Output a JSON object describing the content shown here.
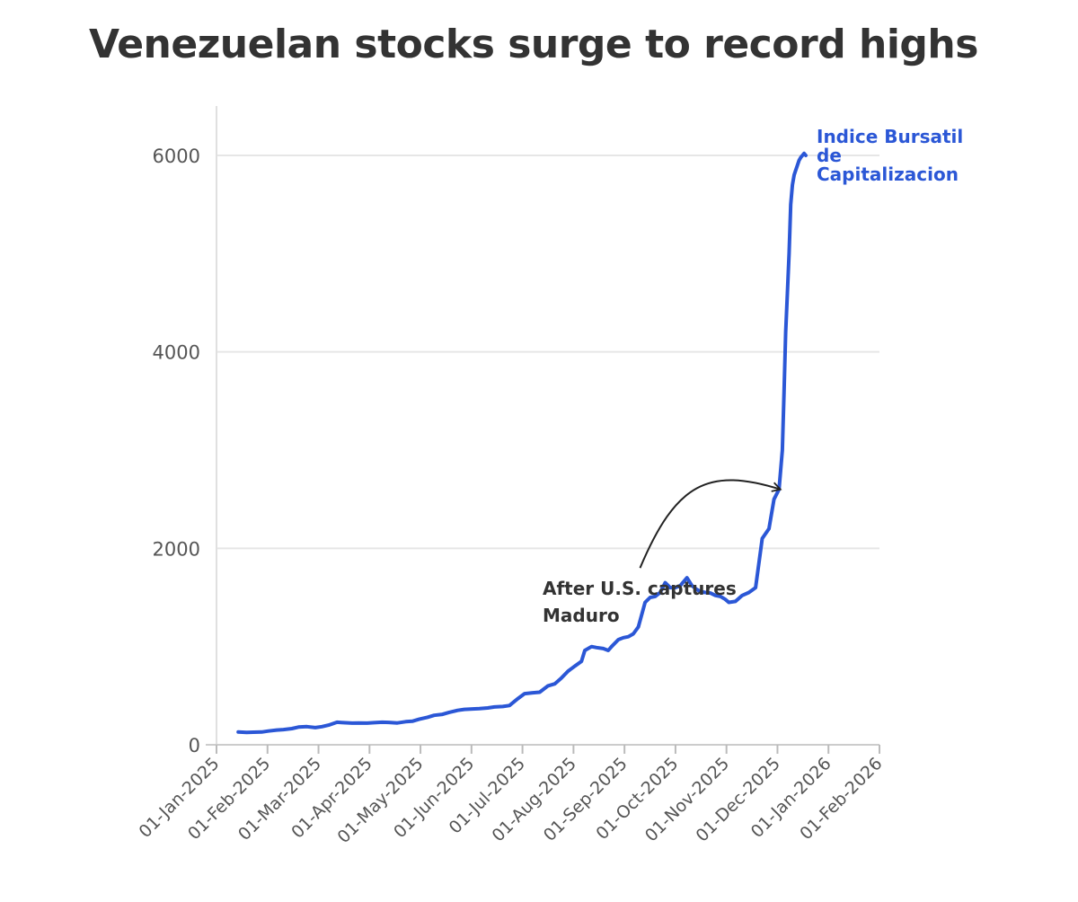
{
  "chart_data": {
    "type": "line",
    "title": "Venezuelan stocks surge to record highs",
    "xlabel": "",
    "ylabel": "",
    "ylim": [
      0,
      6500
    ],
    "yticks": [
      0,
      2000,
      4000,
      6000
    ],
    "xticks": [
      "01-Jan-2025",
      "01-Feb-2025",
      "01-Mar-2025",
      "01-Apr-2025",
      "01-May-2025",
      "01-Jun-2025",
      "01-Jul-2025",
      "01-Aug-2025",
      "01-Sep-2025",
      "01-Oct-2025",
      "01-Nov-2025",
      "01-Dec-2025",
      "01-Jan-2026",
      "01-Feb-2026"
    ],
    "xlim_days": [
      0,
      396
    ],
    "grid": "horizontal",
    "color": "#2b57d6",
    "series": [
      {
        "name": "Indice Bursatil de Capitalizacion",
        "label_lines": [
          "Indice Bursatil",
          "de",
          "Capitalizacion"
        ],
        "x_days": [
          13,
          18,
          22,
          27,
          31,
          36,
          40,
          45,
          49,
          54,
          59,
          63,
          67,
          72,
          76,
          81,
          85,
          90,
          94,
          99,
          103,
          108,
          113,
          117,
          121,
          126,
          130,
          135,
          139,
          144,
          148,
          153,
          157,
          162,
          166,
          171,
          175,
          180,
          184,
          189,
          193,
          198,
          202,
          206,
          210,
          214,
          218,
          220,
          224,
          227,
          231,
          234,
          236,
          240,
          243,
          246,
          249,
          252,
          256,
          259,
          262,
          265,
          268,
          271,
          274,
          277,
          281,
          284,
          287,
          289,
          292,
          295,
          298,
          301,
          304,
          306,
          310,
          314,
          318,
          322,
          326,
          330,
          333,
          336,
          338,
          339,
          340,
          341,
          342,
          343,
          344,
          345,
          346,
          347,
          348,
          349,
          350,
          351,
          352
        ],
        "values": [
          130,
          125,
          128,
          130,
          140,
          150,
          155,
          165,
          180,
          185,
          175,
          185,
          200,
          230,
          225,
          220,
          222,
          220,
          225,
          230,
          228,
          222,
          235,
          240,
          260,
          280,
          300,
          310,
          330,
          350,
          360,
          365,
          368,
          375,
          385,
          390,
          400,
          470,
          520,
          530,
          535,
          600,
          620,
          680,
          750,
          800,
          850,
          960,
          1000,
          990,
          980,
          960,
          1000,
          1070,
          1090,
          1100,
          1130,
          1200,
          1450,
          1500,
          1510,
          1550,
          1650,
          1600,
          1600,
          1620,
          1700,
          1620,
          1580,
          1560,
          1550,
          1545,
          1520,
          1510,
          1480,
          1450,
          1460,
          1520,
          1550,
          1600,
          2100,
          2200,
          2500,
          2600,
          3000,
          3600,
          4200,
          4600,
          5000,
          5500,
          5700,
          5800,
          5850,
          5900,
          5950,
          5980,
          6000,
          6020,
          6000
        ]
      }
    ],
    "annotation": {
      "text_lines": [
        "After U.S. captures",
        "Maduro"
      ],
      "arrow_from_day": 253,
      "arrow_from_value": 1800,
      "arrow_to_day": 339,
      "arrow_to_value": 2600
    }
  }
}
